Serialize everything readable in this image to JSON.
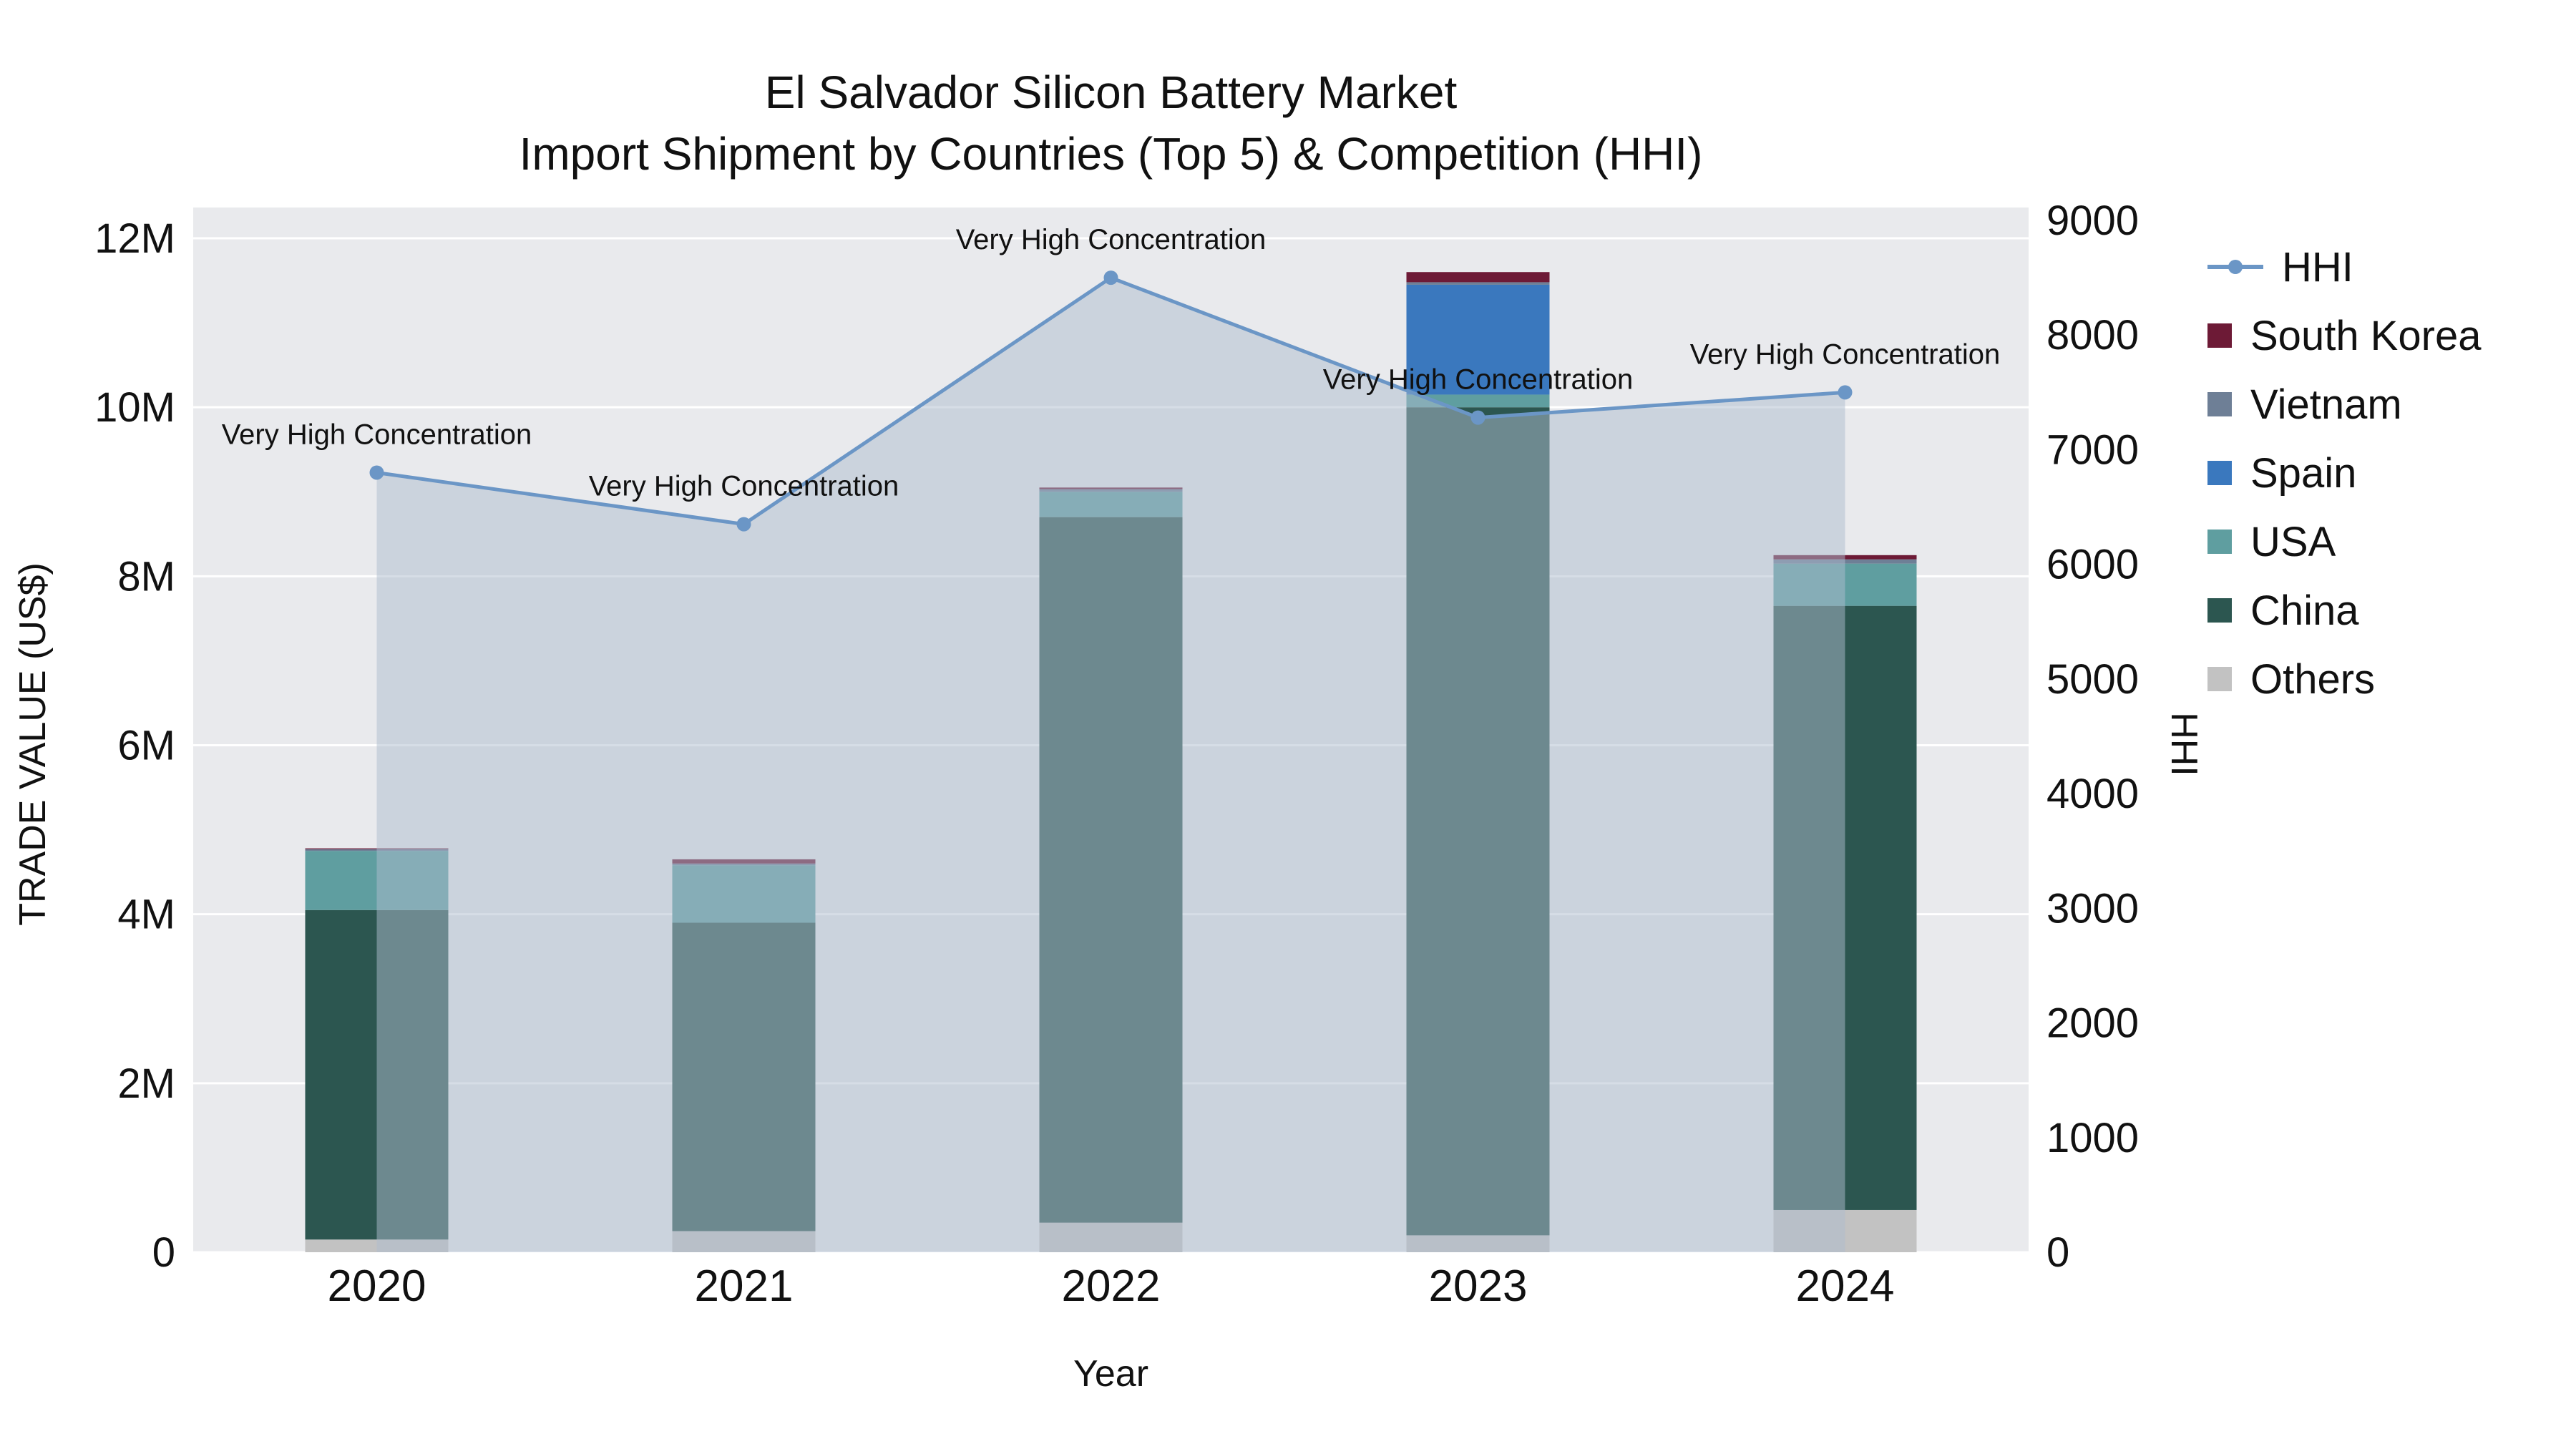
{
  "title": {
    "line1": "El Salvador Silicon Battery Market",
    "line2": "Import Shipment by Countries (Top 5) & Competition (HHI)"
  },
  "axes": {
    "left": {
      "title": "TRADE VALUE (US$)",
      "ticks": [
        {
          "label": "0",
          "value": 0
        },
        {
          "label": "2M",
          "value": 2000000
        },
        {
          "label": "4M",
          "value": 4000000
        },
        {
          "label": "6M",
          "value": 6000000
        },
        {
          "label": "8M",
          "value": 8000000
        },
        {
          "label": "10M",
          "value": 10000000
        },
        {
          "label": "12M",
          "value": 12000000
        }
      ],
      "max_value": 12000000
    },
    "right": {
      "title": "HHI",
      "ticks": [
        {
          "label": "0",
          "value": 0
        },
        {
          "label": "1000",
          "value": 1000
        },
        {
          "label": "2000",
          "value": 2000
        },
        {
          "label": "3000",
          "value": 3000
        },
        {
          "label": "4000",
          "value": 4000
        },
        {
          "label": "5000",
          "value": 5000
        },
        {
          "label": "6000",
          "value": 6000
        },
        {
          "label": "7000",
          "value": 7000
        },
        {
          "label": "8000",
          "value": 8000
        },
        {
          "label": "9000",
          "value": 9000
        }
      ],
      "max_value": 9000
    },
    "x": {
      "title": "Year",
      "categories": [
        "2020",
        "2021",
        "2022",
        "2023",
        "2024"
      ]
    }
  },
  "chart_data": {
    "type": "combo-stacked-bar-line",
    "categories": [
      "2020",
      "2021",
      "2022",
      "2023",
      "2024"
    ],
    "bar_axis": "left",
    "bar_series": [
      {
        "name": "Others",
        "color": "#c2c2c2",
        "values": [
          150000,
          250000,
          350000,
          200000,
          500000
        ]
      },
      {
        "name": "China",
        "color": "#2c5650",
        "values": [
          3900000,
          3650000,
          8350000,
          9800000,
          7150000
        ]
      },
      {
        "name": "USA",
        "color": "#5f9ea0",
        "values": [
          700000,
          680000,
          300000,
          150000,
          500000
        ]
      },
      {
        "name": "Spain",
        "color": "#3a78be",
        "values": [
          0,
          0,
          0,
          1300000,
          0
        ]
      },
      {
        "name": "Vietnam",
        "color": "#6e7f96",
        "values": [
          20000,
          20000,
          30000,
          30000,
          50000
        ]
      },
      {
        "name": "South Korea",
        "color": "#6d1a36",
        "values": [
          10000,
          50000,
          20000,
          120000,
          50000
        ]
      }
    ],
    "line_series": {
      "name": "HHI",
      "axis": "right",
      "color": "#6b96c6",
      "area_fill": "#aebccd",
      "area_opacity": 0.5,
      "values": [
        6800,
        6350,
        8500,
        7280,
        7500
      ]
    },
    "annotations": [
      {
        "index": 0,
        "text": "Very High Concentration"
      },
      {
        "index": 1,
        "text": "Very High Concentration"
      },
      {
        "index": 2,
        "text": "Very High Concentration"
      },
      {
        "index": 3,
        "text": "Very High Concentration"
      },
      {
        "index": 4,
        "text": "Very High Concentration"
      }
    ],
    "plot_background": "#e9eaed",
    "grid_color": "#ffffff"
  },
  "legend": {
    "items": [
      {
        "label": "HHI",
        "type": "line",
        "color": "#6b96c6"
      },
      {
        "label": "South Korea",
        "type": "swatch",
        "color": "#6d1a36"
      },
      {
        "label": "Vietnam",
        "type": "swatch",
        "color": "#6e7f96"
      },
      {
        "label": "Spain",
        "type": "swatch",
        "color": "#3a78be"
      },
      {
        "label": "USA",
        "type": "swatch",
        "color": "#5f9ea0"
      },
      {
        "label": "China",
        "type": "swatch",
        "color": "#2c5650"
      },
      {
        "label": "Others",
        "type": "swatch",
        "color": "#c2c2c2"
      }
    ]
  }
}
